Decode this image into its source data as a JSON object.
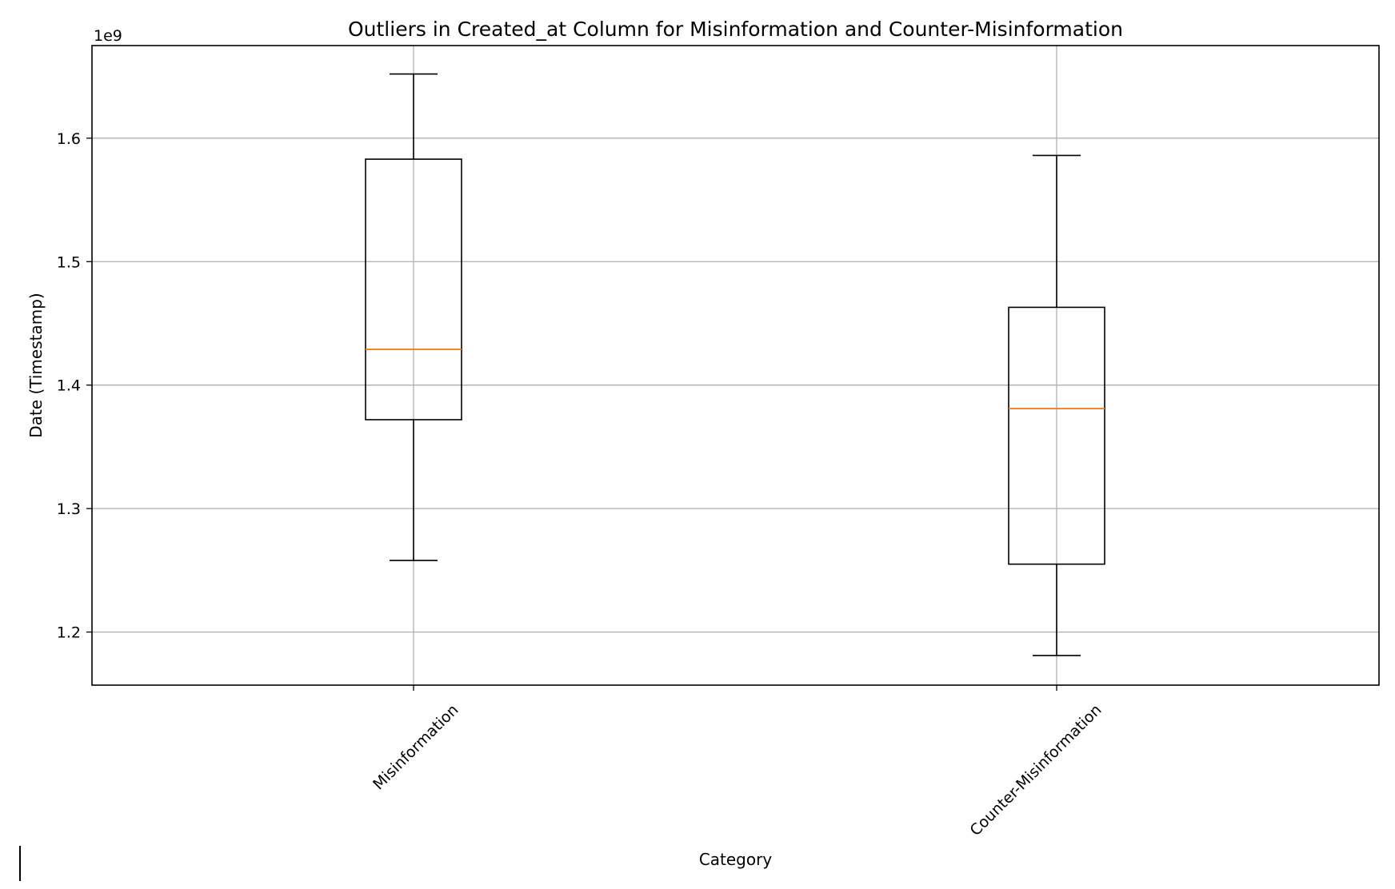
{
  "chart_data": {
    "type": "box",
    "title": "Outliers in Created_at Column for Misinformation and Counter-Misinformation",
    "xlabel": "Category",
    "ylabel": "Date (Timestamp)",
    "y_offset_label": "1e9",
    "ylim": [
      1.157,
      1.675
    ],
    "yticks": [
      1.2,
      1.3,
      1.4,
      1.5,
      1.6
    ],
    "ytick_labels": [
      "1.2",
      "1.3",
      "1.4",
      "1.5",
      "1.6"
    ],
    "grid": true,
    "colors": {
      "box": "#000000",
      "median": "#ff7f0e",
      "grid": "#b0b0b0"
    },
    "categories": [
      "Misinformation",
      "Counter-Misinformation"
    ],
    "boxes": [
      {
        "category": "Misinformation",
        "whisker_low": 1.258,
        "q1": 1.372,
        "median": 1.429,
        "q3": 1.583,
        "whisker_high": 1.652
      },
      {
        "category": "Counter-Misinformation",
        "whisker_low": 1.181,
        "q1": 1.255,
        "median": 1.381,
        "q3": 1.463,
        "whisker_high": 1.586
      }
    ]
  }
}
